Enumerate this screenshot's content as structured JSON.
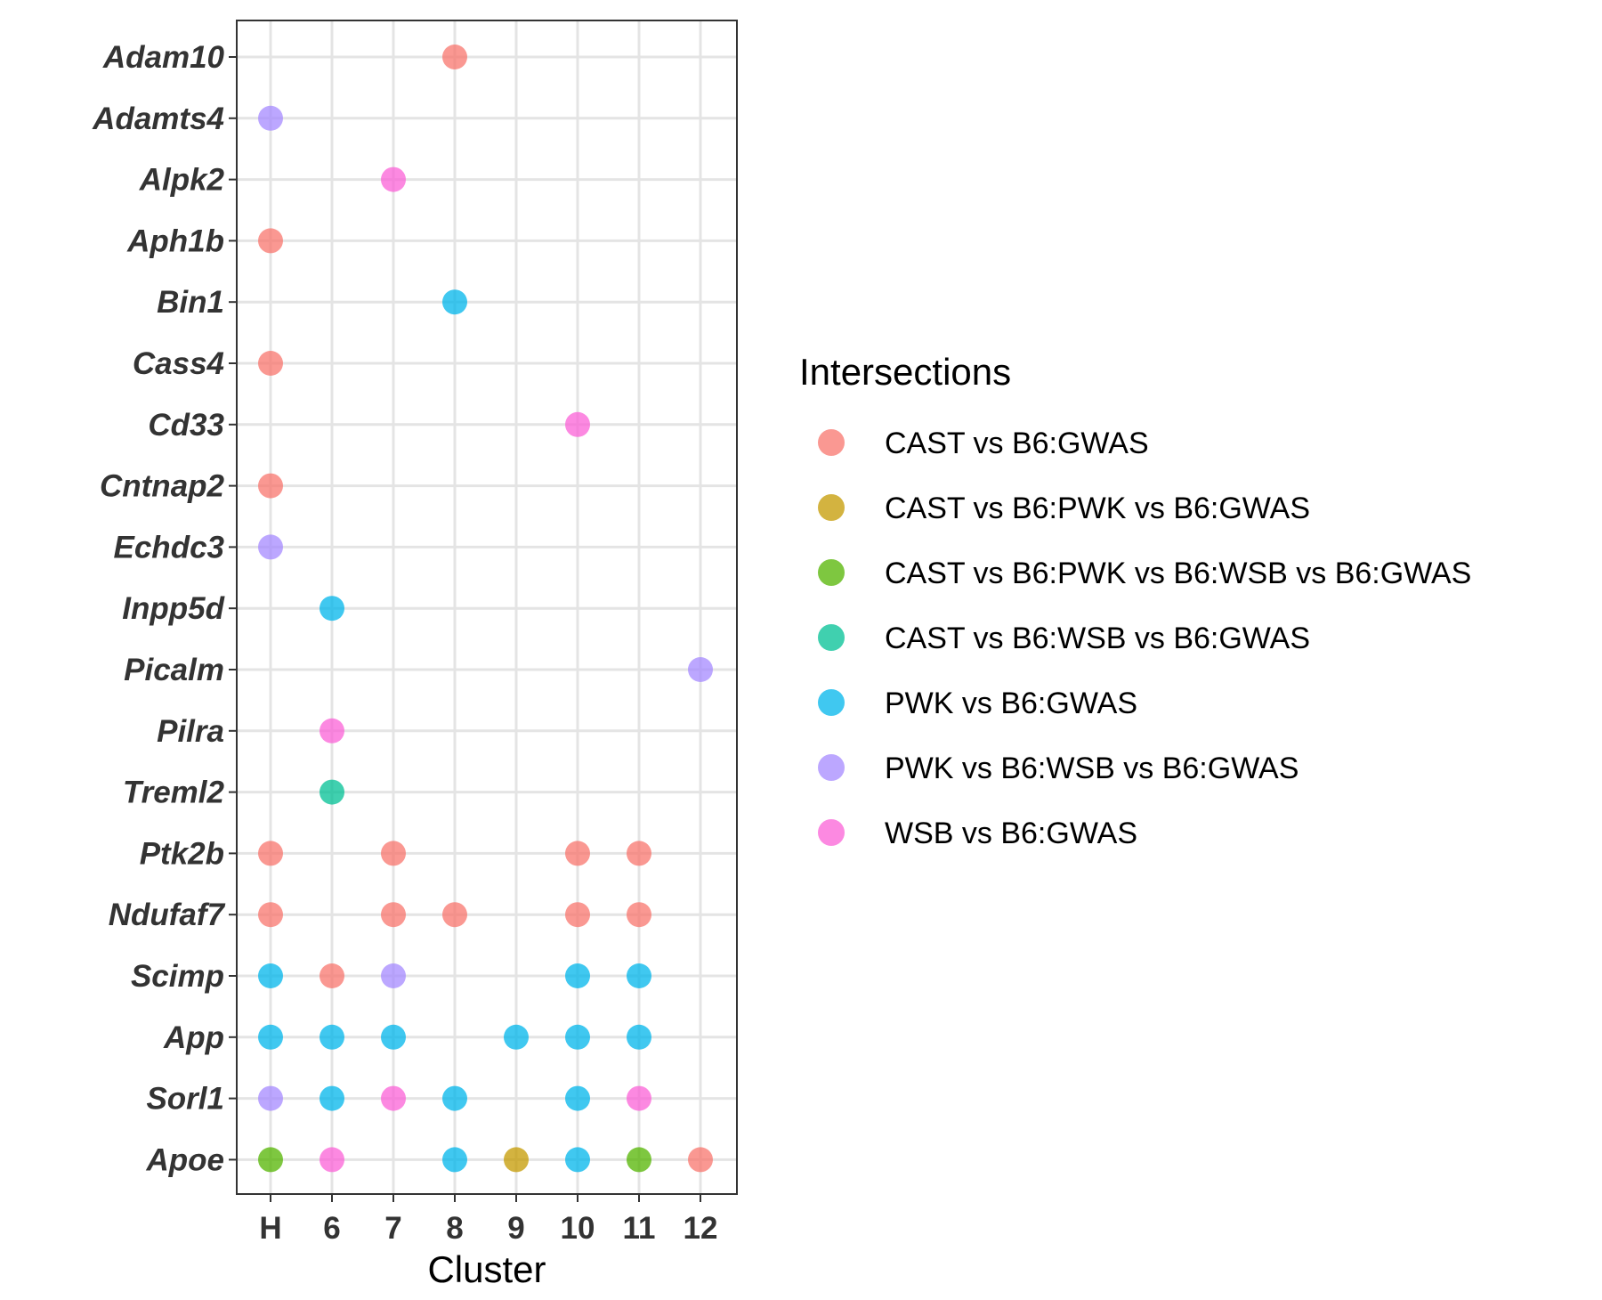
{
  "chart_data": {
    "type": "scatter",
    "xlabel": "Cluster",
    "ylabel": "",
    "categories_x": [
      "H",
      "6",
      "7",
      "8",
      "9",
      "10",
      "11",
      "12"
    ],
    "categories_y": [
      "Adam10",
      "Adamts4",
      "Alpk2",
      "Aph1b",
      "Bin1",
      "Cass4",
      "Cd33",
      "Cntnap2",
      "Echdc3",
      "Inpp5d",
      "Picalm",
      "Pilra",
      "Treml2",
      "Ptk2b",
      "Ndufaf7",
      "Scimp",
      "App",
      "Sorl1",
      "Apoe"
    ],
    "grid": true,
    "legend": {
      "title": "Intersections",
      "position": "right",
      "entries": [
        {
          "label": "CAST vs B6:GWAS",
          "color": "#F8766D"
        },
        {
          "label": "CAST vs B6:PWK vs B6:GWAS",
          "color": "#C49A00"
        },
        {
          "label": "CAST vs B6:PWK vs B6:WSB vs B6:GWAS",
          "color": "#53B400"
        },
        {
          "label": "CAST vs B6:WSB vs B6:GWAS",
          "color": "#00C094"
        },
        {
          "label": "PWK vs B6:GWAS",
          "color": "#00B6EB"
        },
        {
          "label": "PWK vs B6:WSB vs B6:GWAS",
          "color": "#A58AFF"
        },
        {
          "label": "WSB vs B6:GWAS",
          "color": "#FB61D7"
        }
      ]
    },
    "points": [
      {
        "x": "8",
        "y": "Adam10",
        "group": "CAST vs B6:GWAS"
      },
      {
        "x": "H",
        "y": "Adamts4",
        "group": "PWK vs B6:WSB vs B6:GWAS"
      },
      {
        "x": "7",
        "y": "Alpk2",
        "group": "WSB vs B6:GWAS"
      },
      {
        "x": "H",
        "y": "Aph1b",
        "group": "CAST vs B6:GWAS"
      },
      {
        "x": "8",
        "y": "Bin1",
        "group": "PWK vs B6:GWAS"
      },
      {
        "x": "H",
        "y": "Cass4",
        "group": "CAST vs B6:GWAS"
      },
      {
        "x": "10",
        "y": "Cd33",
        "group": "WSB vs B6:GWAS"
      },
      {
        "x": "H",
        "y": "Cntnap2",
        "group": "CAST vs B6:GWAS"
      },
      {
        "x": "H",
        "y": "Echdc3",
        "group": "PWK vs B6:WSB vs B6:GWAS"
      },
      {
        "x": "6",
        "y": "Inpp5d",
        "group": "PWK vs B6:GWAS"
      },
      {
        "x": "12",
        "y": "Picalm",
        "group": "PWK vs B6:WSB vs B6:GWAS"
      },
      {
        "x": "6",
        "y": "Pilra",
        "group": "WSB vs B6:GWAS"
      },
      {
        "x": "6",
        "y": "Treml2",
        "group": "CAST vs B6:WSB vs B6:GWAS"
      },
      {
        "x": "H",
        "y": "Ptk2b",
        "group": "CAST vs B6:GWAS"
      },
      {
        "x": "7",
        "y": "Ptk2b",
        "group": "CAST vs B6:GWAS"
      },
      {
        "x": "10",
        "y": "Ptk2b",
        "group": "CAST vs B6:GWAS"
      },
      {
        "x": "11",
        "y": "Ptk2b",
        "group": "CAST vs B6:GWAS"
      },
      {
        "x": "H",
        "y": "Ndufaf7",
        "group": "CAST vs B6:GWAS"
      },
      {
        "x": "7",
        "y": "Ndufaf7",
        "group": "CAST vs B6:GWAS"
      },
      {
        "x": "8",
        "y": "Ndufaf7",
        "group": "CAST vs B6:GWAS"
      },
      {
        "x": "10",
        "y": "Ndufaf7",
        "group": "CAST vs B6:GWAS"
      },
      {
        "x": "11",
        "y": "Ndufaf7",
        "group": "CAST vs B6:GWAS"
      },
      {
        "x": "H",
        "y": "Scimp",
        "group": "PWK vs B6:GWAS"
      },
      {
        "x": "6",
        "y": "Scimp",
        "group": "CAST vs B6:GWAS"
      },
      {
        "x": "7",
        "y": "Scimp",
        "group": "PWK vs B6:WSB vs B6:GWAS"
      },
      {
        "x": "10",
        "y": "Scimp",
        "group": "PWK vs B6:GWAS"
      },
      {
        "x": "11",
        "y": "Scimp",
        "group": "PWK vs B6:GWAS"
      },
      {
        "x": "H",
        "y": "App",
        "group": "PWK vs B6:GWAS"
      },
      {
        "x": "6",
        "y": "App",
        "group": "PWK vs B6:GWAS"
      },
      {
        "x": "7",
        "y": "App",
        "group": "PWK vs B6:GWAS"
      },
      {
        "x": "9",
        "y": "App",
        "group": "PWK vs B6:GWAS"
      },
      {
        "x": "10",
        "y": "App",
        "group": "PWK vs B6:GWAS"
      },
      {
        "x": "11",
        "y": "App",
        "group": "PWK vs B6:GWAS"
      },
      {
        "x": "H",
        "y": "Sorl1",
        "group": "PWK vs B6:WSB vs B6:GWAS"
      },
      {
        "x": "6",
        "y": "Sorl1",
        "group": "PWK vs B6:GWAS"
      },
      {
        "x": "7",
        "y": "Sorl1",
        "group": "WSB vs B6:GWAS"
      },
      {
        "x": "8",
        "y": "Sorl1",
        "group": "PWK vs B6:GWAS"
      },
      {
        "x": "10",
        "y": "Sorl1",
        "group": "PWK vs B6:GWAS"
      },
      {
        "x": "11",
        "y": "Sorl1",
        "group": "WSB vs B6:GWAS"
      },
      {
        "x": "H",
        "y": "Apoe",
        "group": "CAST vs B6:PWK vs B6:WSB vs B6:GWAS"
      },
      {
        "x": "6",
        "y": "Apoe",
        "group": "WSB vs B6:GWAS"
      },
      {
        "x": "8",
        "y": "Apoe",
        "group": "PWK vs B6:GWAS"
      },
      {
        "x": "9",
        "y": "Apoe",
        "group": "CAST vs B6:PWK vs B6:GWAS"
      },
      {
        "x": "10",
        "y": "Apoe",
        "group": "PWK vs B6:GWAS"
      },
      {
        "x": "11",
        "y": "Apoe",
        "group": "CAST vs B6:PWK vs B6:WSB vs B6:GWAS"
      },
      {
        "x": "12",
        "y": "Apoe",
        "group": "CAST vs B6:GWAS"
      }
    ]
  }
}
